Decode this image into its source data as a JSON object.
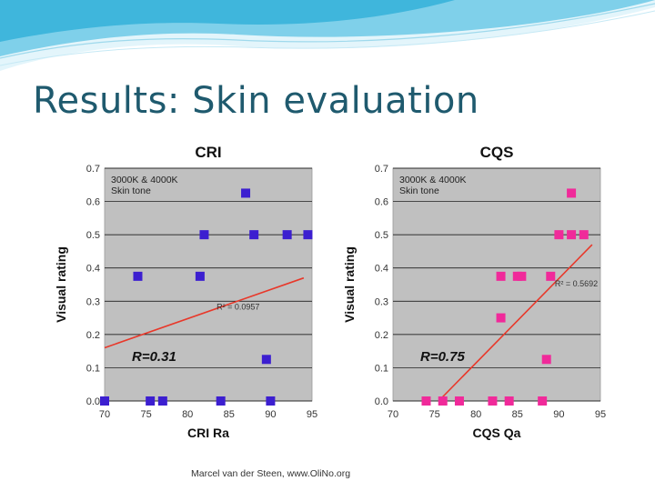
{
  "slide": {
    "title": "Results: Skin evaluation",
    "footer": "Marcel van der Steen, www.OliNo.org"
  },
  "colors": {
    "title": "#1f5a6e",
    "plot_background": "#c0c0c0",
    "gridline": "#000000",
    "trendline": "#e8382a",
    "cri_marker": "#3c1fd0",
    "cqs_marker": "#f02a9a",
    "header_wave": "#3fb6dc"
  },
  "chart_data": [
    {
      "type": "scatter",
      "title": "CRI",
      "xlabel": "CRI Ra",
      "ylabel": "Visual rating",
      "xlim": [
        70,
        95
      ],
      "ylim": [
        0,
        0.7
      ],
      "xticks": [
        "70",
        "75",
        "80",
        "85",
        "90",
        "95"
      ],
      "yticks": [
        "0.0",
        "0.1",
        "0.2",
        "0.3",
        "0.4",
        "0.5",
        "0.6",
        "0.7"
      ],
      "grid": "horizontal",
      "annotation": "3000K & 4000K\nSkin tone",
      "r_label": "R=0.31",
      "r2_label": "R² = 0.0957",
      "trendline": {
        "x": [
          70,
          94
        ],
        "y": [
          0.16,
          0.37
        ]
      },
      "points": [
        {
          "x": 70,
          "y": 0.0
        },
        {
          "x": 74,
          "y": 0.375
        },
        {
          "x": 75.5,
          "y": 0.0
        },
        {
          "x": 77,
          "y": 0.0
        },
        {
          "x": 81.5,
          "y": 0.375
        },
        {
          "x": 82,
          "y": 0.5
        },
        {
          "x": 84,
          "y": 0.0
        },
        {
          "x": 87,
          "y": 0.625
        },
        {
          "x": 88,
          "y": 0.5
        },
        {
          "x": 89.5,
          "y": 0.125
        },
        {
          "x": 90,
          "y": 0.0
        },
        {
          "x": 92,
          "y": 0.5
        },
        {
          "x": 94.5,
          "y": 0.5
        }
      ]
    },
    {
      "type": "scatter",
      "title": "CQS",
      "xlabel": "CQS Qa",
      "ylabel": "Visual rating",
      "xlim": [
        70,
        95
      ],
      "ylim": [
        0,
        0.7
      ],
      "xticks": [
        "70",
        "75",
        "80",
        "85",
        "90",
        "95"
      ],
      "yticks": [
        "0.0",
        "0.1",
        "0.2",
        "0.3",
        "0.4",
        "0.5",
        "0.6",
        "0.7"
      ],
      "grid": "horizontal",
      "annotation": "3000K & 4000K\nSkin tone",
      "r_label": "R=0.75",
      "r2_label": "R² = 0.5692",
      "trendline": {
        "x": [
          75.5,
          94
        ],
        "y": [
          0.0,
          0.47
        ]
      },
      "points": [
        {
          "x": 74,
          "y": 0.0
        },
        {
          "x": 76,
          "y": 0.0
        },
        {
          "x": 78,
          "y": 0.0
        },
        {
          "x": 82,
          "y": 0.0
        },
        {
          "x": 83,
          "y": 0.375
        },
        {
          "x": 83,
          "y": 0.25
        },
        {
          "x": 84,
          "y": 0.0
        },
        {
          "x": 85,
          "y": 0.375
        },
        {
          "x": 85.5,
          "y": 0.375
        },
        {
          "x": 88,
          "y": 0.0
        },
        {
          "x": 88.5,
          "y": 0.125
        },
        {
          "x": 89,
          "y": 0.375
        },
        {
          "x": 90,
          "y": 0.5
        },
        {
          "x": 91.5,
          "y": 0.625
        },
        {
          "x": 91.5,
          "y": 0.5
        },
        {
          "x": 93,
          "y": 0.5
        }
      ]
    }
  ]
}
